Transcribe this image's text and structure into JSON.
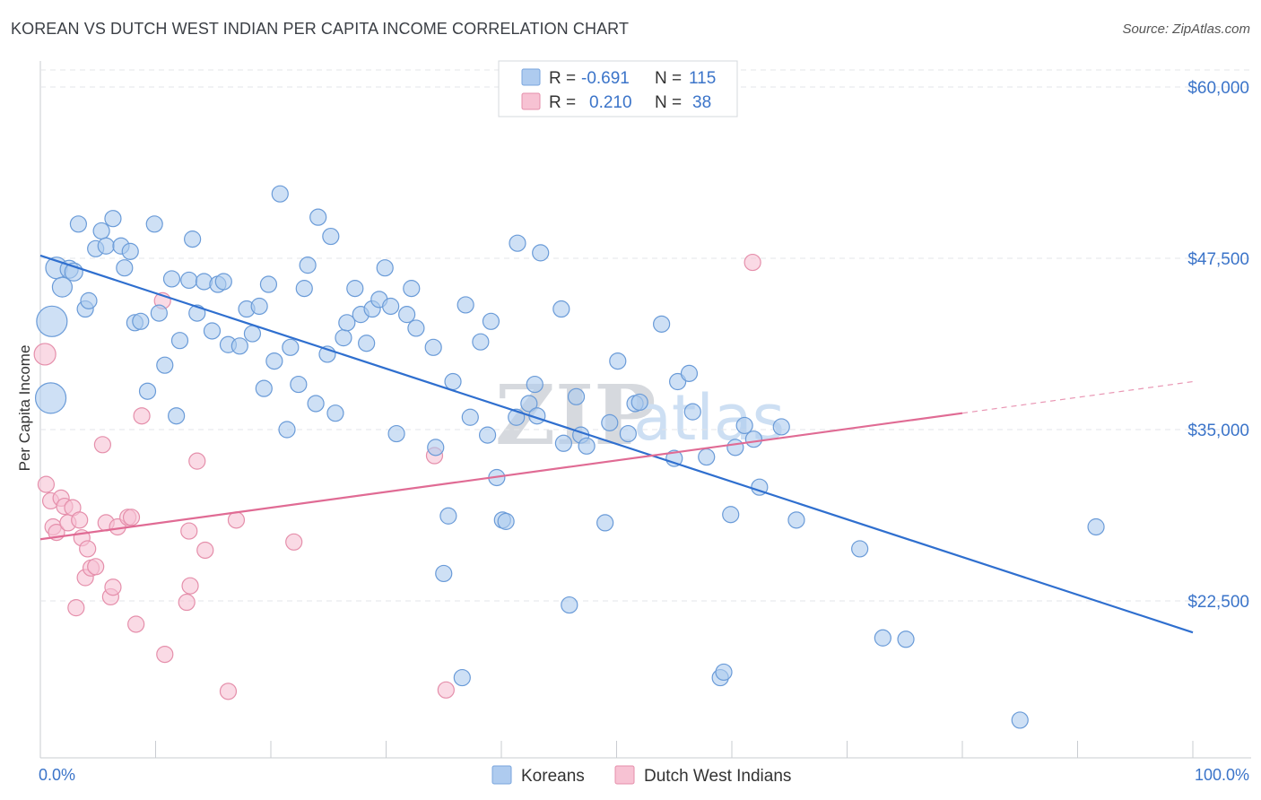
{
  "header": {
    "title": "KOREAN VS DUTCH WEST INDIAN PER CAPITA INCOME CORRELATION CHART",
    "source": "Source: ZipAtlas.com"
  },
  "watermark": {
    "zip": "ZIP",
    "atlas": "atlas"
  },
  "stats": {
    "rows": [
      {
        "r_label": "R =",
        "r_value": "-0.691",
        "n_label": "N =",
        "n_value": "115",
        "color": "#aecbef",
        "stroke": "#7aa6de"
      },
      {
        "r_label": "R =",
        "r_value": "0.210",
        "n_label": "N =",
        "n_value": "38",
        "color": "#f7c2d3",
        "stroke": "#e58fab"
      }
    ]
  },
  "chart_data": {
    "type": "scatter",
    "title": "KOREAN VS DUTCH WEST INDIAN PER CAPITA INCOME CORRELATION CHART",
    "xlabel": "",
    "ylabel": "Per Capita Income",
    "xlim": [
      0,
      100
    ],
    "ylim": [
      9500,
      62000
    ],
    "x_tick_labels": [
      "0.0%",
      "100.0%"
    ],
    "y_ticks": [
      {
        "value": 60000,
        "label": "$60,000"
      },
      {
        "value": 47500,
        "label": "$47,500"
      },
      {
        "value": 35000,
        "label": "$35,000"
      },
      {
        "value": 22500,
        "label": "$22,500"
      }
    ],
    "grid": true,
    "legend": [
      "Koreans",
      "Dutch West Indians"
    ],
    "series": [
      {
        "name": "Koreans",
        "color": "#aecbef",
        "stroke": "#6a9bd8",
        "trend": {
          "x0": 0,
          "y0": 47700,
          "x1": 100,
          "y1": 20200,
          "color": "#2f6fcf"
        },
        "points": [
          {
            "x": 1.0,
            "y": 42900,
            "s": 17
          },
          {
            "x": 0.9,
            "y": 37300,
            "s": 17
          },
          {
            "x": 1.4,
            "y": 46800,
            "s": 12
          },
          {
            "x": 1.9,
            "y": 45400,
            "s": 11
          },
          {
            "x": 2.5,
            "y": 46700,
            "s": 10
          },
          {
            "x": 2.9,
            "y": 46500,
            "s": 10
          },
          {
            "x": 3.3,
            "y": 50000,
            "s": 9
          },
          {
            "x": 3.9,
            "y": 43800,
            "s": 9
          },
          {
            "x": 4.2,
            "y": 44400,
            "s": 9
          },
          {
            "x": 4.8,
            "y": 48200,
            "s": 9
          },
          {
            "x": 5.3,
            "y": 49500,
            "s": 9
          },
          {
            "x": 5.7,
            "y": 48400,
            "s": 9
          },
          {
            "x": 6.3,
            "y": 50400,
            "s": 9
          },
          {
            "x": 7.0,
            "y": 48400,
            "s": 9
          },
          {
            "x": 7.3,
            "y": 46800,
            "s": 9
          },
          {
            "x": 7.8,
            "y": 48000,
            "s": 9
          },
          {
            "x": 8.2,
            "y": 42800,
            "s": 9
          },
          {
            "x": 8.7,
            "y": 42900,
            "s": 9
          },
          {
            "x": 9.3,
            "y": 37800,
            "s": 9
          },
          {
            "x": 9.9,
            "y": 50000,
            "s": 9
          },
          {
            "x": 10.3,
            "y": 43500,
            "s": 9
          },
          {
            "x": 10.8,
            "y": 39700,
            "s": 9
          },
          {
            "x": 11.4,
            "y": 46000,
            "s": 9
          },
          {
            "x": 11.8,
            "y": 36000,
            "s": 9
          },
          {
            "x": 12.1,
            "y": 41500,
            "s": 9
          },
          {
            "x": 12.9,
            "y": 45900,
            "s": 9
          },
          {
            "x": 13.2,
            "y": 48900,
            "s": 9
          },
          {
            "x": 13.6,
            "y": 43500,
            "s": 9
          },
          {
            "x": 14.2,
            "y": 45800,
            "s": 9
          },
          {
            "x": 14.9,
            "y": 42200,
            "s": 9
          },
          {
            "x": 15.4,
            "y": 45600,
            "s": 9
          },
          {
            "x": 15.9,
            "y": 45800,
            "s": 9
          },
          {
            "x": 16.3,
            "y": 41200,
            "s": 9
          },
          {
            "x": 17.3,
            "y": 41100,
            "s": 9
          },
          {
            "x": 17.9,
            "y": 43800,
            "s": 9
          },
          {
            "x": 18.4,
            "y": 42000,
            "s": 9
          },
          {
            "x": 19.0,
            "y": 44000,
            "s": 9
          },
          {
            "x": 19.4,
            "y": 38000,
            "s": 9
          },
          {
            "x": 19.8,
            "y": 45600,
            "s": 9
          },
          {
            "x": 20.3,
            "y": 40000,
            "s": 9
          },
          {
            "x": 20.8,
            "y": 52200,
            "s": 9
          },
          {
            "x": 21.4,
            "y": 35000,
            "s": 9
          },
          {
            "x": 21.7,
            "y": 41000,
            "s": 9
          },
          {
            "x": 22.4,
            "y": 38300,
            "s": 9
          },
          {
            "x": 22.9,
            "y": 45300,
            "s": 9
          },
          {
            "x": 23.2,
            "y": 47000,
            "s": 9
          },
          {
            "x": 23.9,
            "y": 36900,
            "s": 9
          },
          {
            "x": 24.1,
            "y": 50500,
            "s": 9
          },
          {
            "x": 24.9,
            "y": 40500,
            "s": 9
          },
          {
            "x": 25.2,
            "y": 49100,
            "s": 9
          },
          {
            "x": 25.6,
            "y": 36200,
            "s": 9
          },
          {
            "x": 26.3,
            "y": 41700,
            "s": 9
          },
          {
            "x": 26.6,
            "y": 42800,
            "s": 9
          },
          {
            "x": 27.3,
            "y": 45300,
            "s": 9
          },
          {
            "x": 27.8,
            "y": 43400,
            "s": 9
          },
          {
            "x": 28.3,
            "y": 41300,
            "s": 9
          },
          {
            "x": 28.8,
            "y": 43800,
            "s": 9
          },
          {
            "x": 29.4,
            "y": 44500,
            "s": 9
          },
          {
            "x": 29.9,
            "y": 46800,
            "s": 9
          },
          {
            "x": 30.4,
            "y": 44000,
            "s": 9
          },
          {
            "x": 30.9,
            "y": 34700,
            "s": 9
          },
          {
            "x": 31.8,
            "y": 43400,
            "s": 9
          },
          {
            "x": 32.2,
            "y": 45300,
            "s": 9
          },
          {
            "x": 32.6,
            "y": 42400,
            "s": 9
          },
          {
            "x": 34.1,
            "y": 41000,
            "s": 9
          },
          {
            "x": 34.3,
            "y": 33700,
            "s": 9
          },
          {
            "x": 35.0,
            "y": 24500,
            "s": 9
          },
          {
            "x": 35.4,
            "y": 28700,
            "s": 9
          },
          {
            "x": 35.8,
            "y": 38500,
            "s": 9
          },
          {
            "x": 36.6,
            "y": 16900,
            "s": 9
          },
          {
            "x": 36.9,
            "y": 44100,
            "s": 9
          },
          {
            "x": 37.3,
            "y": 35900,
            "s": 9
          },
          {
            "x": 38.2,
            "y": 41400,
            "s": 9
          },
          {
            "x": 38.8,
            "y": 34600,
            "s": 9
          },
          {
            "x": 39.1,
            "y": 42900,
            "s": 9
          },
          {
            "x": 39.6,
            "y": 31500,
            "s": 9
          },
          {
            "x": 40.1,
            "y": 28400,
            "s": 9
          },
          {
            "x": 40.4,
            "y": 28300,
            "s": 9
          },
          {
            "x": 41.3,
            "y": 35900,
            "s": 9
          },
          {
            "x": 41.4,
            "y": 48600,
            "s": 9
          },
          {
            "x": 42.4,
            "y": 36900,
            "s": 9
          },
          {
            "x": 42.9,
            "y": 38300,
            "s": 9
          },
          {
            "x": 43.1,
            "y": 36000,
            "s": 9
          },
          {
            "x": 43.4,
            "y": 47900,
            "s": 9
          },
          {
            "x": 45.2,
            "y": 43800,
            "s": 9
          },
          {
            "x": 45.4,
            "y": 34000,
            "s": 9
          },
          {
            "x": 45.9,
            "y": 22200,
            "s": 9
          },
          {
            "x": 46.5,
            "y": 37400,
            "s": 9
          },
          {
            "x": 46.9,
            "y": 34600,
            "s": 9
          },
          {
            "x": 47.4,
            "y": 33800,
            "s": 9
          },
          {
            "x": 49.0,
            "y": 28200,
            "s": 9
          },
          {
            "x": 49.4,
            "y": 35500,
            "s": 9
          },
          {
            "x": 50.1,
            "y": 40000,
            "s": 9
          },
          {
            "x": 51.0,
            "y": 34700,
            "s": 9
          },
          {
            "x": 51.6,
            "y": 36900,
            "s": 9
          },
          {
            "x": 52.0,
            "y": 37000,
            "s": 9
          },
          {
            "x": 53.9,
            "y": 42700,
            "s": 9
          },
          {
            "x": 55.0,
            "y": 32900,
            "s": 9
          },
          {
            "x": 55.3,
            "y": 38500,
            "s": 9
          },
          {
            "x": 56.3,
            "y": 39100,
            "s": 9
          },
          {
            "x": 56.6,
            "y": 36300,
            "s": 9
          },
          {
            "x": 57.8,
            "y": 33000,
            "s": 9
          },
          {
            "x": 59.0,
            "y": 16900,
            "s": 9
          },
          {
            "x": 59.3,
            "y": 17300,
            "s": 9
          },
          {
            "x": 59.9,
            "y": 28800,
            "s": 9
          },
          {
            "x": 60.3,
            "y": 33700,
            "s": 9
          },
          {
            "x": 61.1,
            "y": 35300,
            "s": 9
          },
          {
            "x": 61.9,
            "y": 34300,
            "s": 9
          },
          {
            "x": 62.4,
            "y": 30800,
            "s": 9
          },
          {
            "x": 64.3,
            "y": 35200,
            "s": 9
          },
          {
            "x": 65.6,
            "y": 28400,
            "s": 9
          },
          {
            "x": 71.1,
            "y": 26300,
            "s": 9
          },
          {
            "x": 73.1,
            "y": 19800,
            "s": 9
          },
          {
            "x": 75.1,
            "y": 19700,
            "s": 9
          },
          {
            "x": 85.0,
            "y": 13800,
            "s": 9
          },
          {
            "x": 91.6,
            "y": 27900,
            "s": 9
          }
        ]
      },
      {
        "name": "Dutch West Indians",
        "color": "#f7c2d3",
        "stroke": "#e58fab",
        "trend": {
          "x0": 0,
          "y0": 27000,
          "x1": 80.0,
          "y1": 36200,
          "ext_x1": 100,
          "ext_y1": 38500,
          "color": "#e06b94"
        },
        "points": [
          {
            "x": 0.4,
            "y": 40500,
            "s": 12
          },
          {
            "x": 0.5,
            "y": 31000,
            "s": 9
          },
          {
            "x": 0.9,
            "y": 29800,
            "s": 9
          },
          {
            "x": 1.1,
            "y": 27900,
            "s": 9
          },
          {
            "x": 1.4,
            "y": 27500,
            "s": 9
          },
          {
            "x": 1.8,
            "y": 30000,
            "s": 9
          },
          {
            "x": 2.1,
            "y": 29400,
            "s": 9
          },
          {
            "x": 2.4,
            "y": 28200,
            "s": 9
          },
          {
            "x": 2.8,
            "y": 29300,
            "s": 9
          },
          {
            "x": 3.1,
            "y": 22000,
            "s": 9
          },
          {
            "x": 3.4,
            "y": 28400,
            "s": 9
          },
          {
            "x": 3.6,
            "y": 27100,
            "s": 9
          },
          {
            "x": 3.9,
            "y": 24200,
            "s": 9
          },
          {
            "x": 4.1,
            "y": 26300,
            "s": 9
          },
          {
            "x": 4.4,
            "y": 24900,
            "s": 9
          },
          {
            "x": 4.8,
            "y": 25000,
            "s": 9
          },
          {
            "x": 5.4,
            "y": 33900,
            "s": 9
          },
          {
            "x": 5.7,
            "y": 28200,
            "s": 9
          },
          {
            "x": 6.1,
            "y": 22800,
            "s": 9
          },
          {
            "x": 6.3,
            "y": 23500,
            "s": 9
          },
          {
            "x": 6.7,
            "y": 27900,
            "s": 9
          },
          {
            "x": 7.6,
            "y": 28600,
            "s": 9
          },
          {
            "x": 7.9,
            "y": 28600,
            "s": 9
          },
          {
            "x": 8.3,
            "y": 20800,
            "s": 9
          },
          {
            "x": 8.8,
            "y": 36000,
            "s": 9
          },
          {
            "x": 10.6,
            "y": 44400,
            "s": 9
          },
          {
            "x": 10.8,
            "y": 18600,
            "s": 9
          },
          {
            "x": 12.7,
            "y": 22400,
            "s": 9
          },
          {
            "x": 12.9,
            "y": 27600,
            "s": 9
          },
          {
            "x": 13.0,
            "y": 23600,
            "s": 9
          },
          {
            "x": 13.6,
            "y": 32700,
            "s": 9
          },
          {
            "x": 14.3,
            "y": 26200,
            "s": 9
          },
          {
            "x": 16.3,
            "y": 15900,
            "s": 9
          },
          {
            "x": 17.0,
            "y": 28400,
            "s": 9
          },
          {
            "x": 22.0,
            "y": 26800,
            "s": 9
          },
          {
            "x": 34.2,
            "y": 33100,
            "s": 9
          },
          {
            "x": 35.2,
            "y": 16000,
            "s": 9
          },
          {
            "x": 61.8,
            "y": 47200,
            "s": 9
          }
        ]
      }
    ]
  },
  "legend": {
    "items": [
      {
        "label": "Koreans",
        "color": "#aecbef",
        "stroke": "#7aa6de"
      },
      {
        "label": "Dutch West Indians",
        "color": "#f7c2d3",
        "stroke": "#e58fab"
      }
    ]
  }
}
